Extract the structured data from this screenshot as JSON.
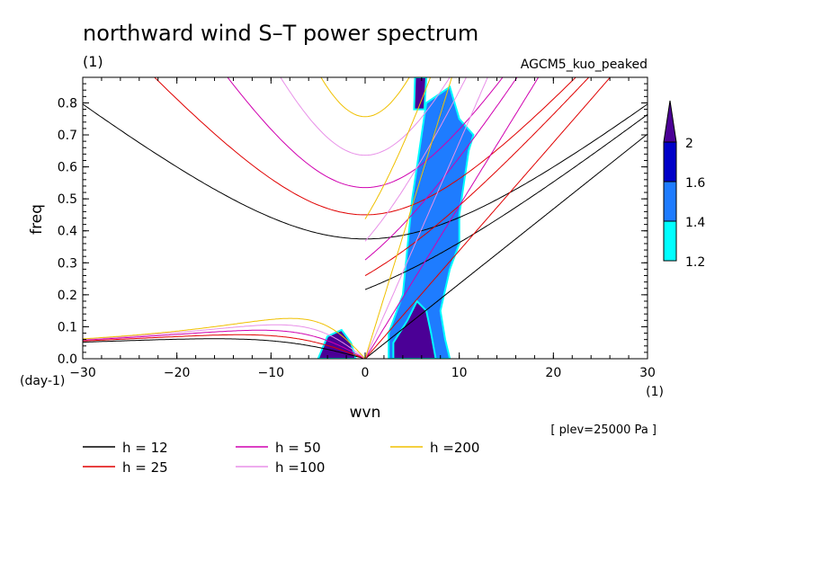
{
  "chart_data": {
    "type": "heatmap",
    "title": "northward wind S–T power spectrum",
    "subtitle_left": "(1)",
    "subtitle_right": "AGCM5_kuo_peaked",
    "xlabel": "wvn",
    "ylabel": "freq",
    "x_unit": "(1)",
    "y_unit": "(day-1)",
    "xlim": [
      -30,
      30
    ],
    "ylim": [
      0,
      0.88
    ],
    "xticks": [
      -30,
      -20,
      -10,
      0,
      10,
      20,
      30
    ],
    "xtick_labels": [
      "−30",
      "−20",
      "−10",
      "0",
      "10",
      "20",
      "30"
    ],
    "yticks": [
      0,
      0.1,
      0.2,
      0.3,
      0.4,
      0.5,
      0.6,
      0.7,
      0.8
    ],
    "ytick_labels": [
      "0.0",
      "0.1",
      "0.2",
      "0.3",
      "0.4",
      "0.5",
      "0.6",
      "0.7",
      "0.8"
    ],
    "note": "[ plev=25000 Pa ]",
    "colorbar": {
      "levels": [
        1.2,
        1.4,
        1.6,
        2
      ],
      "labels": [
        "1.2",
        "1.4",
        "1.6",
        "2"
      ],
      "colors": [
        "#00ffff",
        "#1e7cff",
        "#0000c8",
        "#4b0096"
      ]
    },
    "dispersion_curves": [
      {
        "h": 12,
        "label": "h = 12",
        "color": "#000000"
      },
      {
        "h": 25,
        "label": "h = 25",
        "color": "#e00000"
      },
      {
        "h": 50,
        "label": "h = 50",
        "color": "#d000b0"
      },
      {
        "h": 100,
        "label": "h =100",
        "color": "#e890e8"
      },
      {
        "h": 200,
        "label": "h =200",
        "color": "#f0c000"
      }
    ],
    "shaded_regions": [
      {
        "name": "kelvin-band",
        "points": [
          [
            2.5,
            0.0
          ],
          [
            9.0,
            0.0
          ],
          [
            8.5,
            0.06
          ],
          [
            8.0,
            0.15
          ],
          [
            9.0,
            0.28
          ],
          [
            10.0,
            0.36
          ],
          [
            10.0,
            0.45
          ],
          [
            10.5,
            0.55
          ],
          [
            11.0,
            0.65
          ],
          [
            11.5,
            0.7
          ],
          [
            10.0,
            0.75
          ],
          [
            9.0,
            0.85
          ],
          [
            6.5,
            0.8
          ],
          [
            6.0,
            0.7
          ],
          [
            5.5,
            0.6
          ],
          [
            5.0,
            0.5
          ],
          [
            4.5,
            0.35
          ],
          [
            4.0,
            0.2
          ],
          [
            2.5,
            0.08
          ]
        ]
      },
      {
        "name": "kelvin-core",
        "points": [
          [
            3.0,
            0.0
          ],
          [
            7.5,
            0.0
          ],
          [
            7.0,
            0.08
          ],
          [
            6.5,
            0.15
          ],
          [
            5.5,
            0.18
          ],
          [
            4.5,
            0.12
          ],
          [
            3.0,
            0.05
          ]
        ]
      },
      {
        "name": "westward-blob",
        "points": [
          [
            -5.0,
            0.0
          ],
          [
            -1.0,
            0.0
          ],
          [
            -1.5,
            0.05
          ],
          [
            -2.5,
            0.09
          ],
          [
            -4.0,
            0.07
          ]
        ]
      },
      {
        "name": "top-blob",
        "points": [
          [
            5.2,
            0.78
          ],
          [
            6.3,
            0.78
          ],
          [
            6.5,
            0.88
          ],
          [
            5.3,
            0.88
          ]
        ]
      }
    ]
  }
}
